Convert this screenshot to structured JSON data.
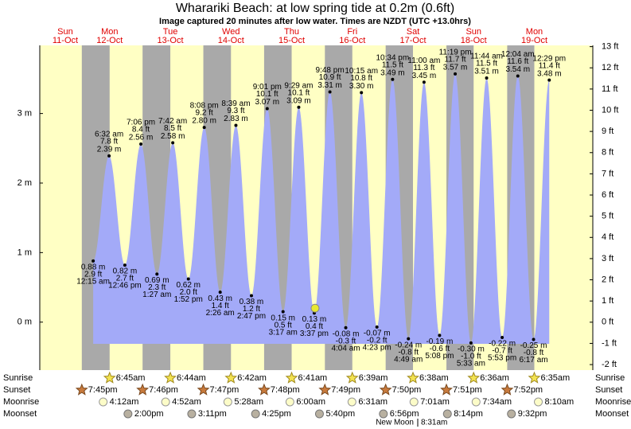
{
  "chart_data": {
    "type": "tide",
    "title": "Wharariki Beach: at low  spring tide at 0.2m (0.6ft)",
    "subtitle": "Image captured 20 minutes after low water. Times are NZDT (UTC +13.0hrs)",
    "ylim": [
      -0.69,
      3.98
    ],
    "yticks": [
      {
        "value": 0,
        "label": "0 m"
      },
      {
        "value": 1,
        "label": "1 m"
      },
      {
        "value": 2,
        "label": "2 m"
      },
      {
        "value": 3,
        "label": "3 m"
      }
    ],
    "y2lim": [
      -2.26,
      13.06
    ],
    "y2ticks": [
      {
        "value": -2,
        "label": "-2 ft"
      },
      {
        "value": -1,
        "label": "-1 ft"
      },
      {
        "value": 0,
        "label": "0 ft"
      },
      {
        "value": 1,
        "label": "1 ft"
      },
      {
        "value": 2,
        "label": "2 ft"
      },
      {
        "value": 3,
        "label": "3 ft"
      },
      {
        "value": 4,
        "label": "4 ft"
      },
      {
        "value": 5,
        "label": "5 ft"
      },
      {
        "value": 6,
        "label": "6 ft"
      },
      {
        "value": 7,
        "label": "7 ft"
      },
      {
        "value": 8,
        "label": "8 ft"
      },
      {
        "value": 9,
        "label": "9 ft"
      },
      {
        "value": 10,
        "label": "10 ft"
      },
      {
        "value": 11,
        "label": "11 ft"
      },
      {
        "value": 12,
        "label": "12 ft"
      },
      {
        "value": 13,
        "label": "13 ft"
      }
    ],
    "color": "#a3aaf8",
    "current": {
      "height": 0.2
    },
    "row_labels": {
      "sunrise": "Sunrise",
      "sunset": "Sunset",
      "moonrise": "Moonrise",
      "moonset": "Moonset"
    },
    "days": [
      {
        "name": "Sun",
        "date": "11-Oct",
        "sunset": "7:45pm",
        "tides": []
      },
      {
        "name": "Mon",
        "date": "12-Oct",
        "sunrise": "6:45am",
        "sunset": "7:46pm",
        "moonrise": "4:12am",
        "moonset": "2:00pm",
        "tides": [
          {
            "time": "12:15 am",
            "height": 0.88,
            "label": "0.88 m",
            "feet": "2.9 ft"
          },
          {
            "time": "6:32 am",
            "height": 2.39,
            "label": "2.39 m",
            "feet": "7.8 ft"
          },
          {
            "time": "12:46 pm",
            "height": 0.82,
            "label": "0.82 m",
            "feet": "2.7 ft"
          },
          {
            "time": "7:06 pm",
            "height": 2.56,
            "label": "2.56 m",
            "feet": "8.4 ft"
          }
        ]
      },
      {
        "name": "Tue",
        "date": "13-Oct",
        "sunrise": "6:44am",
        "sunset": "7:47pm",
        "moonrise": "4:52am",
        "moonset": "3:11pm",
        "tides": [
          {
            "time": "1:27 am",
            "height": 0.69,
            "label": "0.69 m",
            "feet": "2.3 ft"
          },
          {
            "time": "7:42 am",
            "height": 2.58,
            "label": "2.58 m",
            "feet": "8.5 ft"
          },
          {
            "time": "1:52 pm",
            "height": 0.62,
            "label": "0.62 m",
            "feet": "2.0 ft"
          },
          {
            "time": "8:08 pm",
            "height": 2.8,
            "label": "2.80 m",
            "feet": "9.2 ft"
          }
        ]
      },
      {
        "name": "Wed",
        "date": "14-Oct",
        "sunrise": "6:42am",
        "sunset": "7:48pm",
        "moonrise": "5:28am",
        "moonset": "4:25pm",
        "tides": [
          {
            "time": "2:26 am",
            "height": 0.43,
            "label": "0.43 m",
            "feet": "1.4 ft"
          },
          {
            "time": "8:39 am",
            "height": 2.83,
            "label": "2.83 m",
            "feet": "9.3 ft"
          },
          {
            "time": "2:47 pm",
            "height": 0.38,
            "label": "0.38 m",
            "feet": "1.2 ft"
          },
          {
            "time": "9:01 pm",
            "height": 3.07,
            "label": "3.07 m",
            "feet": "10.1 ft"
          }
        ]
      },
      {
        "name": "Thu",
        "date": "15-Oct",
        "sunrise": "6:41am",
        "sunset": "7:49pm",
        "moonrise": "6:00am",
        "moonset": "5:40pm",
        "tides": [
          {
            "time": "3:17 am",
            "height": 0.15,
            "label": "0.15 m",
            "feet": "0.5 ft"
          },
          {
            "time": "9:29 am",
            "height": 3.09,
            "label": "3.09 m",
            "feet": "10.1 ft"
          },
          {
            "time": "3:37 pm",
            "height": 0.13,
            "label": "0.13 m",
            "feet": "0.4 ft"
          },
          {
            "time": "9:48 pm",
            "height": 3.31,
            "label": "3.31 m",
            "feet": "10.9 ft"
          }
        ]
      },
      {
        "name": "Fri",
        "date": "16-Oct",
        "sunrise": "6:39am",
        "sunset": "7:50pm",
        "moonrise": "6:31am",
        "moonset": "6:56pm",
        "tides": [
          {
            "time": "4:04 am",
            "height": -0.08,
            "label": "-0.08 m",
            "feet": "-0.3 ft"
          },
          {
            "time": "10:15 am",
            "height": 3.3,
            "label": "3.30 m",
            "feet": "10.8 ft"
          },
          {
            "time": "4:23 pm",
            "height": -0.07,
            "label": "-0.07 m",
            "feet": "-0.2 ft"
          },
          {
            "time": "10:34 pm",
            "height": 3.49,
            "label": "3.49 m",
            "feet": "11.5 ft"
          }
        ]
      },
      {
        "name": "Sat",
        "date": "17-Oct",
        "sunrise": "6:38am",
        "sunset": "7:51pm",
        "moonrise": "7:01am",
        "moonset": "8:14pm",
        "moon_phase": "New Moon",
        "moon_phase_time": "8:31am",
        "tides": [
          {
            "time": "4:49 am",
            "height": -0.24,
            "label": "-0.24 m",
            "feet": "-0.8 ft"
          },
          {
            "time": "11:00 am",
            "height": 3.45,
            "label": "3.45 m",
            "feet": "11.3 ft"
          },
          {
            "time": "5:08 pm",
            "height": -0.19,
            "label": "-0.19 m",
            "feet": "-0.6 ft"
          },
          {
            "time": "11:19 pm",
            "height": 3.57,
            "label": "3.57 m",
            "feet": "11.7 ft"
          }
        ]
      },
      {
        "name": "Sun",
        "date": "18-Oct",
        "sunrise": "6:36am",
        "sunset": "7:52pm",
        "moonrise": "7:34am",
        "moonset": "9:32pm",
        "tides": [
          {
            "time": "5:33 am",
            "height": -0.3,
            "label": "-0.30 m",
            "feet": "-1.0 ft"
          },
          {
            "time": "11:44 am",
            "height": 3.51,
            "label": "3.51 m",
            "feet": "11.5 ft"
          },
          {
            "time": "5:53 pm",
            "height": -0.22,
            "label": "-0.22 m",
            "feet": "-0.7 ft"
          }
        ]
      },
      {
        "name": "Mon",
        "date": "19-Oct",
        "sunrise": "6:35am",
        "moonrise": "8:10am",
        "tides": [
          {
            "time": "12:04 am",
            "height": 3.54,
            "label": "3.54 m",
            "feet": "11.6 ft"
          },
          {
            "time": "6:17 am",
            "height": -0.25,
            "label": "-0.25 m",
            "feet": "-0.8 ft"
          },
          {
            "time": "12:29 pm",
            "height": 3.48,
            "label": "3.48 m",
            "feet": "11.4 ft"
          }
        ]
      }
    ]
  }
}
